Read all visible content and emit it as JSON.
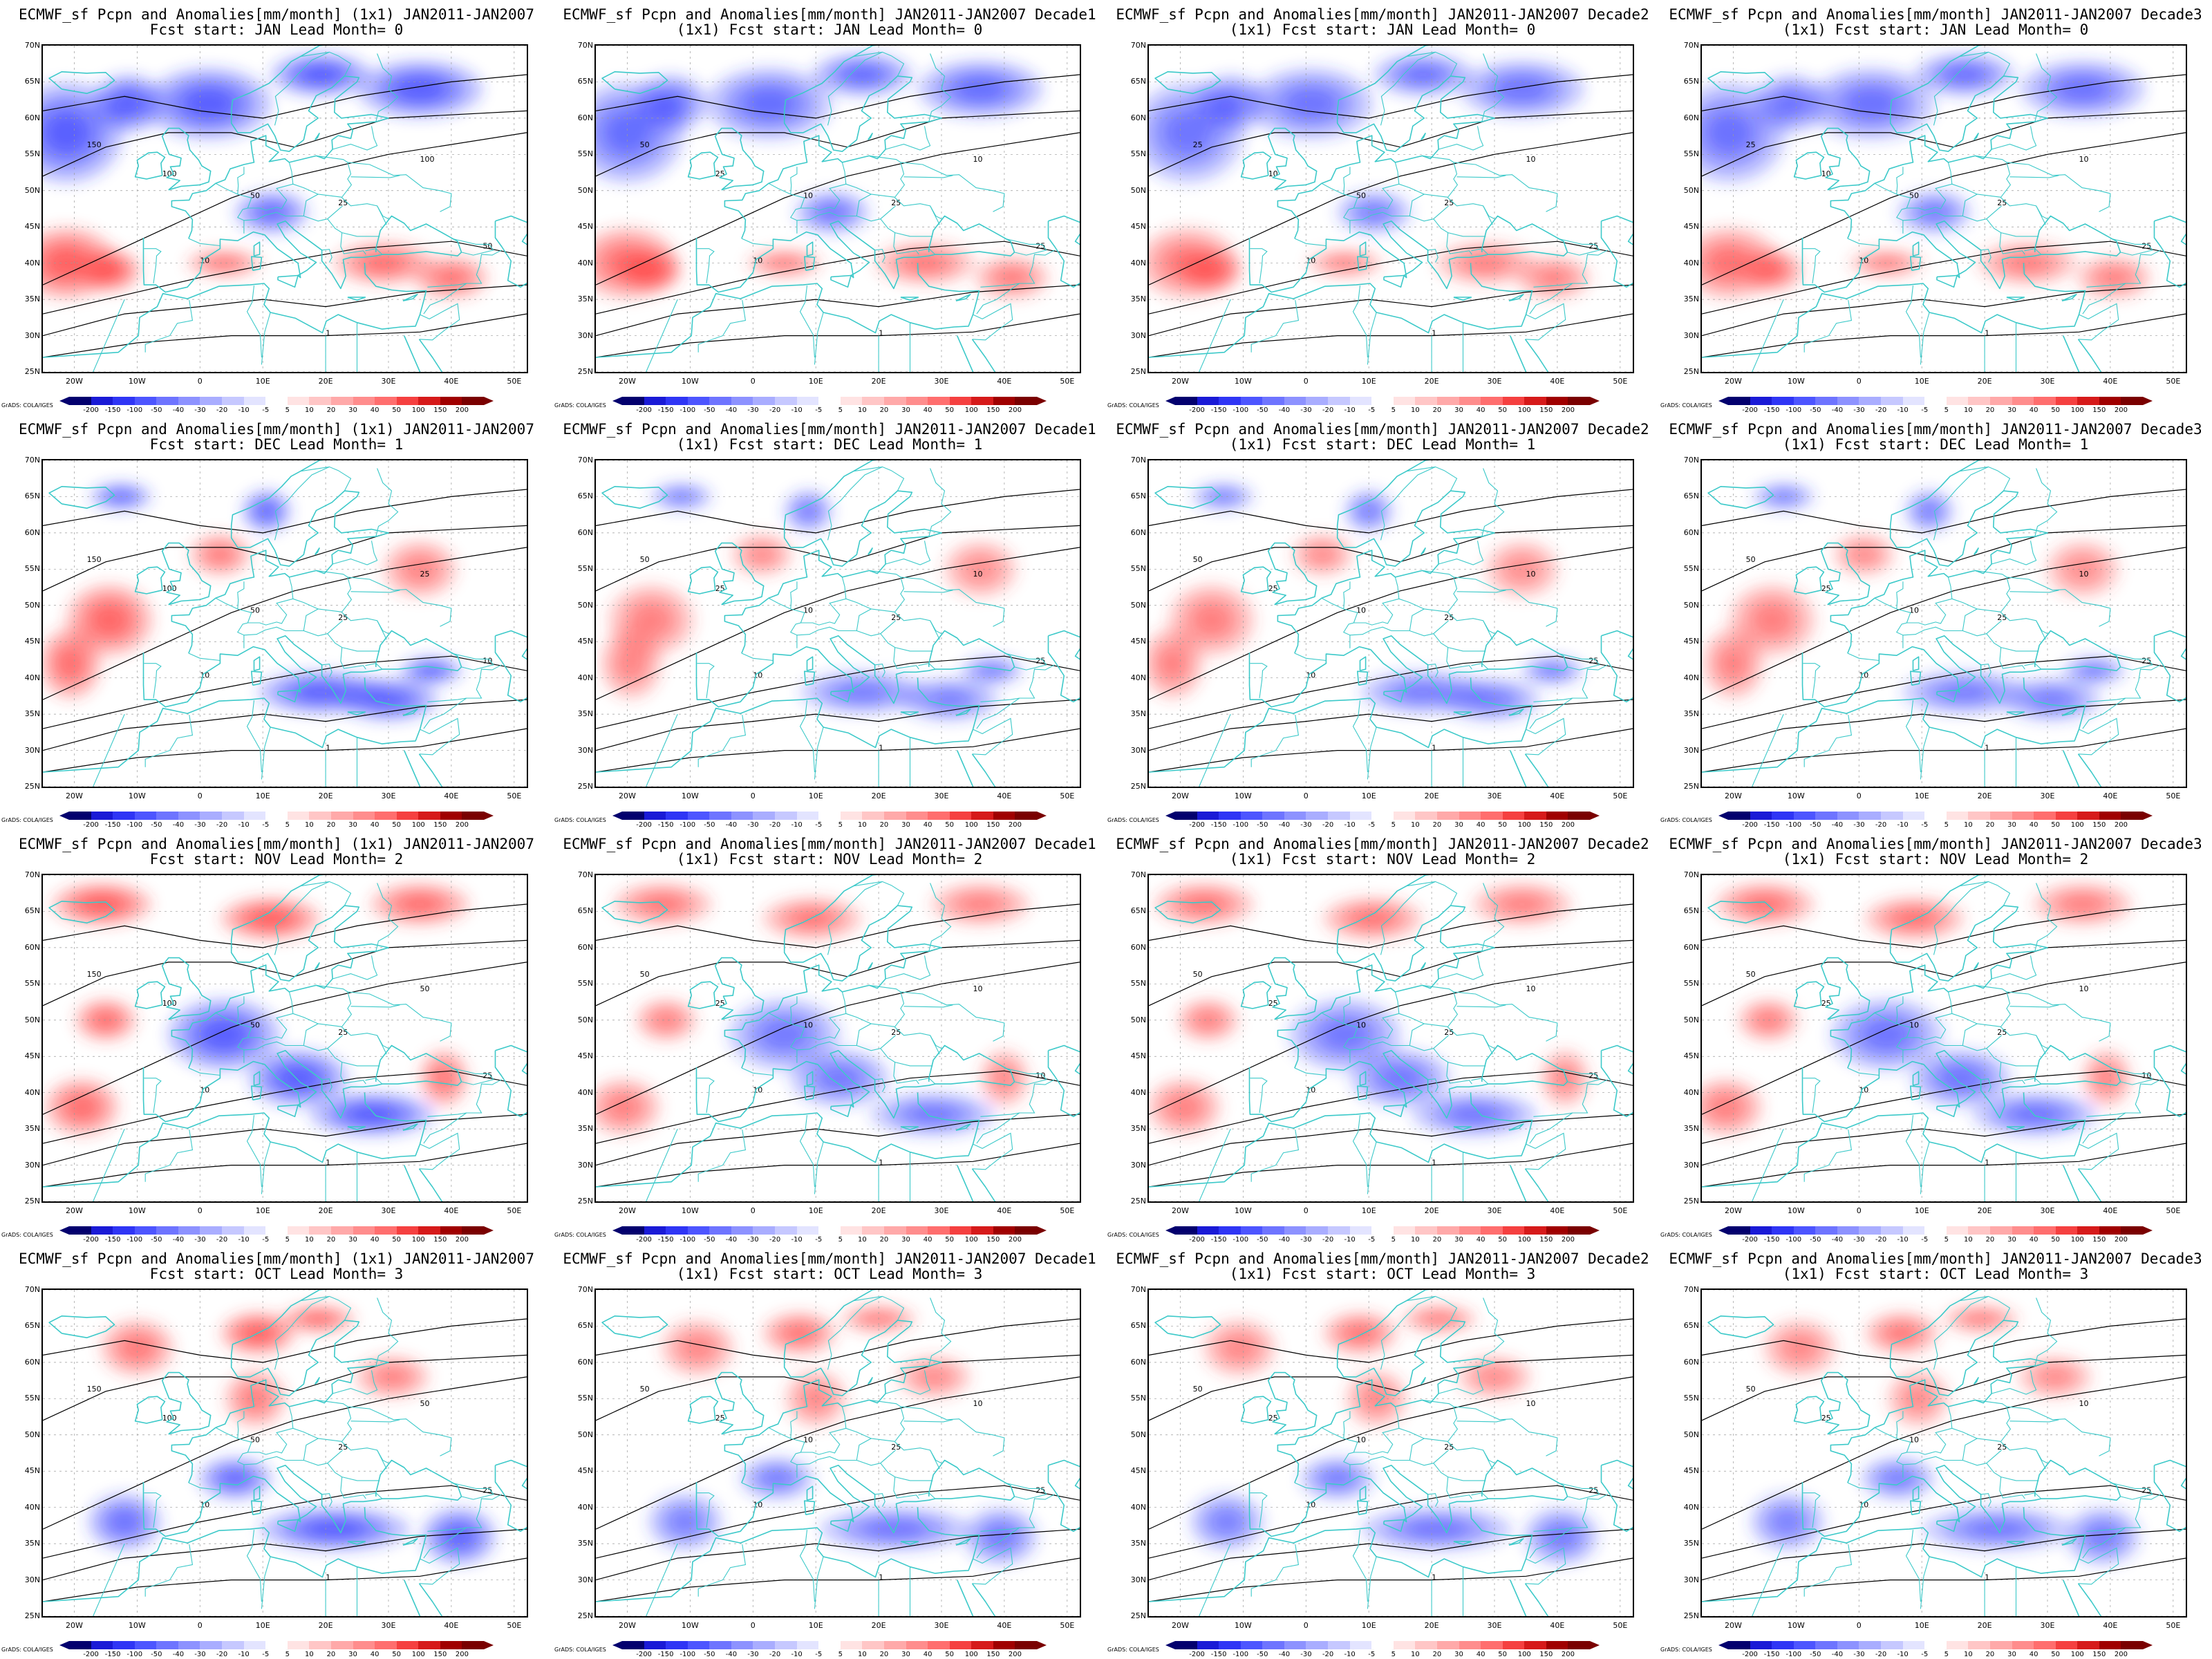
{
  "panels": [
    {
      "title1": "ECMWF_sf Pcpn and Anomalies[mm/month] (1x1) JAN2011-JAN2007",
      "title2": "Fcst start: JAN  Lead Month= 0",
      "intensity": 1.0,
      "contour_labels": [
        "150",
        "100",
        "50",
        "25",
        "10",
        "1",
        "100",
        "50"
      ]
    },
    {
      "title1": "ECMWF_sf Pcpn and Anomalies[mm/month] JAN2011-JAN2007 Decade1",
      "title2": "(1x1) Fcst start: JAN  Lead Month= 0",
      "intensity": 0.7,
      "contour_labels": [
        "50",
        "25",
        "10",
        "25",
        "10",
        "1",
        "10",
        "25"
      ]
    },
    {
      "title1": "ECMWF_sf Pcpn and Anomalies[mm/month] JAN2011-JAN2007 Decade2",
      "title2": "(1x1) Fcst start: JAN  Lead Month= 0",
      "intensity": 0.55,
      "contour_labels": [
        "25",
        "10",
        "50",
        "25",
        "10",
        "1",
        "10",
        "25"
      ]
    },
    {
      "title1": "ECMWF_sf Pcpn and Anomalies[mm/month] JAN2011-JAN2007 Decade3",
      "title2": "(1x1) Fcst start: JAN  Lead Month= 0",
      "intensity": 0.6,
      "contour_labels": [
        "25",
        "10",
        "50",
        "25",
        "10",
        "1",
        "10",
        "25"
      ]
    },
    {
      "title1": "ECMWF_sf Pcpn and Anomalies[mm/month] (1x1) JAN2011-JAN2007",
      "title2": "Fcst start: DEC  Lead Month= 1",
      "intensity": 0.9,
      "contour_labels": [
        "150",
        "100",
        "50",
        "25",
        "10",
        "1",
        "25",
        "10"
      ]
    },
    {
      "title1": "ECMWF_sf Pcpn and Anomalies[mm/month] JAN2011-JAN2007 Decade1",
      "title2": "(1x1) Fcst start: DEC  Lead Month= 1",
      "intensity": 0.35,
      "contour_labels": [
        "50",
        "25",
        "10",
        "25",
        "10",
        "1",
        "10",
        "25"
      ]
    },
    {
      "title1": "ECMWF_sf Pcpn and Anomalies[mm/month] JAN2011-JAN2007 Decade2",
      "title2": "(1x1) Fcst start: DEC  Lead Month= 1",
      "intensity": 0.4,
      "contour_labels": [
        "50",
        "25",
        "10",
        "25",
        "10",
        "1",
        "10",
        "25"
      ]
    },
    {
      "title1": "ECMWF_sf Pcpn and Anomalies[mm/month] JAN2011-JAN2007 Decade3",
      "title2": "(1x1) Fcst start: DEC  Lead Month= 1",
      "intensity": 0.4,
      "contour_labels": [
        "50",
        "25",
        "10",
        "25",
        "10",
        "1",
        "10",
        "25"
      ]
    },
    {
      "title1": "ECMWF_sf Pcpn and Anomalies[mm/month] (1x1) JAN2011-JAN2007",
      "title2": "Fcst start: NOV  Lead Month= 2",
      "intensity": 1.0,
      "contour_labels": [
        "150",
        "100",
        "50",
        "25",
        "10",
        "1",
        "50",
        "25"
      ]
    },
    {
      "title1": "ECMWF_sf Pcpn and Anomalies[mm/month] JAN2011-JAN2007 Decade1",
      "title2": "(1x1) Fcst start: NOV  Lead Month= 2",
      "intensity": 0.45,
      "contour_labels": [
        "50",
        "25",
        "10",
        "25",
        "10",
        "1",
        "10",
        "10"
      ]
    },
    {
      "title1": "ECMWF_sf Pcpn and Anomalies[mm/month] JAN2011-JAN2007 Decade2",
      "title2": "(1x1) Fcst start: NOV  Lead Month= 2",
      "intensity": 0.5,
      "contour_labels": [
        "50",
        "25",
        "10",
        "25",
        "10",
        "1",
        "10",
        "25"
      ]
    },
    {
      "title1": "ECMWF_sf Pcpn and Anomalies[mm/month] JAN2011-JAN2007 Decade3",
      "title2": "(1x1) Fcst start: NOV  Lead Month= 2",
      "intensity": 0.55,
      "contour_labels": [
        "50",
        "25",
        "10",
        "25",
        "10",
        "1",
        "10",
        "10"
      ]
    },
    {
      "title1": "ECMWF_sf Pcpn and Anomalies[mm/month] (1x1) JAN2011-JAN2007",
      "title2": "Fcst start: OCT  Lead Month= 3",
      "intensity": 0.95,
      "contour_labels": [
        "150",
        "100",
        "50",
        "25",
        "10",
        "1",
        "50",
        "25"
      ]
    },
    {
      "title1": "ECMWF_sf Pcpn and Anomalies[mm/month] JAN2011-JAN2007 Decade1",
      "title2": "(1x1) Fcst start: OCT  Lead Month= 3",
      "intensity": 0.5,
      "contour_labels": [
        "50",
        "25",
        "10",
        "25",
        "10",
        "1",
        "10",
        "25"
      ]
    },
    {
      "title1": "ECMWF_sf Pcpn and Anomalies[mm/month] JAN2011-JAN2007 Decade2",
      "title2": "(1x1) Fcst start: OCT  Lead Month= 3",
      "intensity": 0.5,
      "contour_labels": [
        "50",
        "25",
        "10",
        "25",
        "10",
        "1",
        "10",
        "25"
      ]
    },
    {
      "title1": "ECMWF_sf Pcpn and Anomalies[mm/month] JAN2011-JAN2007 Decade3",
      "title2": "(1x1) Fcst start: OCT  Lead Month= 3",
      "intensity": 0.45,
      "contour_labels": [
        "50",
        "25",
        "10",
        "25",
        "10",
        "1",
        "10",
        "25"
      ]
    }
  ],
  "axes": {
    "lat_labels": [
      "70N",
      "65N",
      "60N",
      "55N",
      "50N",
      "45N",
      "40N",
      "35N",
      "30N",
      "25N"
    ],
    "lon_labels": [
      "20W",
      "10W",
      "0",
      "10E",
      "20E",
      "30E",
      "40E",
      "50E"
    ]
  },
  "colorbar": {
    "labels": [
      "-200",
      "-150",
      "-100",
      "-50",
      "-40",
      "-30",
      "-20",
      "-10",
      "-5",
      "5",
      "10",
      "20",
      "30",
      "40",
      "50",
      "100",
      "150",
      "200"
    ],
    "colors": [
      "#03006e",
      "#1a1ad6",
      "#2f35f5",
      "#4d55ff",
      "#6e74ff",
      "#8d92ff",
      "#a9adff",
      "#c6c8ff",
      "#e3e4ff",
      "#ffffff",
      "#ffe3e3",
      "#ffc6c6",
      "#ffa9a9",
      "#ff8d8d",
      "#ff6e6e",
      "#f54040",
      "#d61a1a",
      "#a00000",
      "#7a0000"
    ],
    "credit": "GrADS: COLA/IGES"
  },
  "colors": {
    "coast": "#3cc9c9",
    "contour": "#000000",
    "neg": "#3039ff",
    "pos": "#ff3b3b"
  }
}
